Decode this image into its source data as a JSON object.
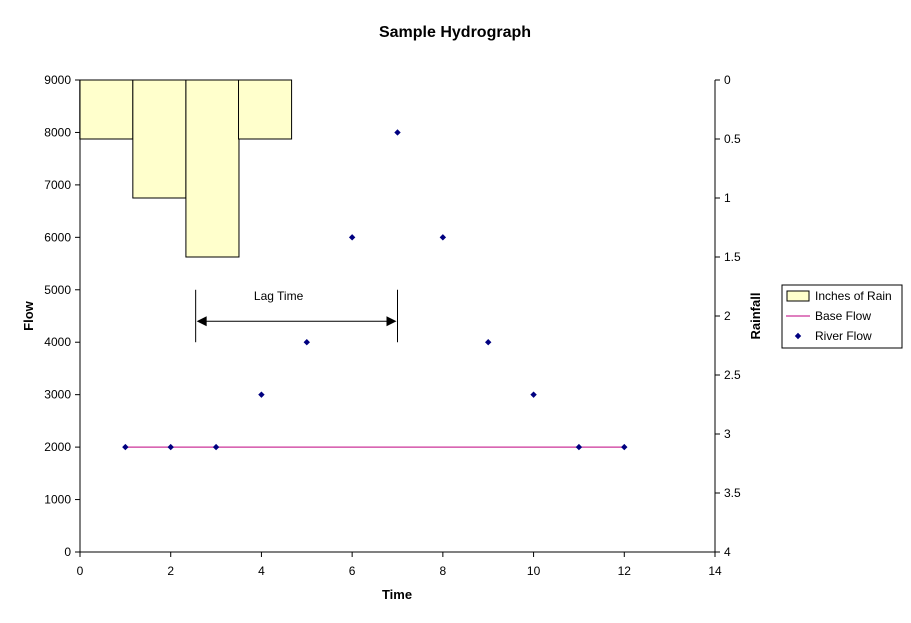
{
  "chart_data": {
    "type": "scatter",
    "title": "Sample Hydrograph",
    "xlabel": "Time",
    "ylabel": "Flow",
    "y2label": "Rainfall",
    "xlim": [
      0,
      14
    ],
    "ylim": [
      0,
      9000
    ],
    "y2lim": [
      0,
      4
    ],
    "y2_inverted": true,
    "x_ticks": [
      "0",
      "2",
      "4",
      "6",
      "8",
      "10",
      "12",
      "14"
    ],
    "y_ticks": [
      "0",
      "1000",
      "2000",
      "3000",
      "4000",
      "5000",
      "6000",
      "7000",
      "8000",
      "9000"
    ],
    "y2_ticks": [
      "0",
      "0.5",
      "1",
      "1.5",
      "2",
      "2.5",
      "3",
      "3.5",
      "4"
    ],
    "grid": false,
    "legend_position": "right",
    "series": [
      {
        "name": "Inches of Rain",
        "type": "bar",
        "axis": "secondary",
        "color": "#ffffcc",
        "edge_color": "#000000",
        "x": [
          0.58,
          1.75,
          2.92,
          4.08
        ],
        "values": [
          0.5,
          1.0,
          1.5,
          0.5
        ]
      },
      {
        "name": "Base Flow",
        "type": "line",
        "color": "#cc3399",
        "x": [
          1,
          12
        ],
        "values": [
          2000,
          2000
        ]
      },
      {
        "name": "River Flow",
        "type": "scatter",
        "color": "#000080",
        "x": [
          1,
          2,
          3,
          4,
          5,
          6,
          7,
          8,
          9,
          10,
          11,
          12
        ],
        "values": [
          2000,
          2000,
          2000,
          3000,
          4000,
          6000,
          8000,
          6000,
          4000,
          3000,
          2000,
          2000
        ]
      }
    ],
    "annotations": [
      {
        "text": "Lag Time",
        "type": "double-arrow",
        "x_start": 2.55,
        "x_end": 7.0,
        "y": 4400,
        "marker_y_range": [
          4000,
          5000
        ]
      }
    ]
  }
}
